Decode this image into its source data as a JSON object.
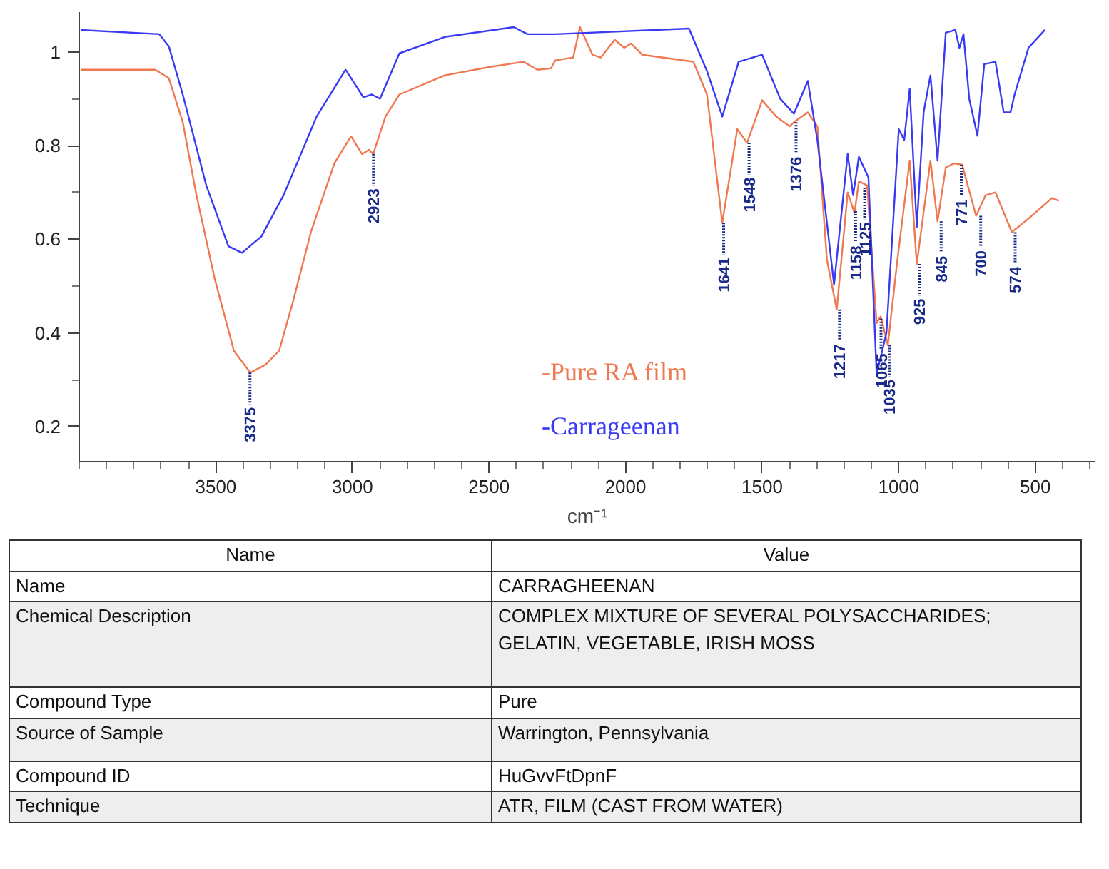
{
  "chart_data": {
    "type": "line",
    "xlabel": "cm⁻¹",
    "xlim": [
      4000,
      280
    ],
    "ylim": [
      0.125,
      1.085
    ],
    "xticks": [
      3500,
      3000,
      2500,
      2000,
      1500,
      1000,
      500
    ],
    "yticks": [
      0.2,
      0.4,
      0.6,
      0.8,
      1
    ],
    "grid": false,
    "legend": "bottom",
    "marker": "none",
    "line_style": "solid",
    "series": [
      {
        "name": "-Pure RA film",
        "color": "#f07850",
        "x": [
          3995,
          3722,
          3672,
          3621,
          3571,
          3505,
          3434,
          3374,
          3318,
          3268,
          3217,
          3152,
          3066,
          3005,
          2965,
          2939,
          2924,
          2879,
          2828,
          2662,
          2495,
          2374,
          2323,
          2273,
          2257,
          2192,
          2167,
          2121,
          2091,
          2040,
          2005,
          1980,
          1939,
          1752,
          1702,
          1646,
          1591,
          1555,
          1500,
          1449,
          1399,
          1384,
          1333,
          1298,
          1263,
          1227,
          1187,
          1162,
          1146,
          1116,
          1081,
          1066,
          1040,
          1005,
          960,
          934,
          884,
          858,
          828,
          798,
          768,
          717,
          682,
          646,
          586,
          525,
          439,
          414
        ],
        "values": [
          0.962,
          0.962,
          0.944,
          0.85,
          0.694,
          0.518,
          0.362,
          0.315,
          0.332,
          0.362,
          0.468,
          0.615,
          0.762,
          0.82,
          0.782,
          0.791,
          0.782,
          0.862,
          0.909,
          0.95,
          0.968,
          0.979,
          0.962,
          0.965,
          0.982,
          0.988,
          1.053,
          0.994,
          0.988,
          1.026,
          1.009,
          1.018,
          0.994,
          0.979,
          0.909,
          0.635,
          0.835,
          0.806,
          0.897,
          0.862,
          0.841,
          0.85,
          0.871,
          0.841,
          0.556,
          0.45,
          0.7,
          0.656,
          0.724,
          0.715,
          0.421,
          0.435,
          0.374,
          0.556,
          0.768,
          0.547,
          0.768,
          0.638,
          0.753,
          0.762,
          0.759,
          0.65,
          0.694,
          0.7,
          0.615,
          0.644,
          0.688,
          0.682
        ]
      },
      {
        "name": "-Carrageenan",
        "color": "#3a3af5",
        "x": [
          3995,
          3707,
          3672,
          3621,
          3535,
          3454,
          3404,
          3333,
          3252,
          3131,
          3025,
          2960,
          2929,
          2899,
          2828,
          2662,
          2409,
          2359,
          2257,
          1768,
          1702,
          1646,
          1586,
          1500,
          1434,
          1384,
          1333,
          1298,
          1237,
          1187,
          1167,
          1146,
          1111,
          1081,
          1045,
          1000,
          980,
          960,
          934,
          909,
          884,
          858,
          828,
          793,
          778,
          763,
          742,
          712,
          687,
          646,
          616,
          591,
          576,
          525,
          465
        ],
        "values": [
          1.047,
          1.038,
          1.012,
          0.909,
          0.715,
          0.585,
          0.571,
          0.606,
          0.694,
          0.862,
          0.962,
          0.903,
          0.909,
          0.9,
          0.997,
          1.032,
          1.053,
          1.038,
          1.038,
          1.05,
          0.959,
          0.862,
          0.979,
          0.994,
          0.9,
          0.868,
          0.938,
          0.812,
          0.503,
          0.782,
          0.694,
          0.776,
          0.732,
          0.312,
          0.4,
          0.835,
          0.812,
          0.921,
          0.626,
          0.871,
          0.95,
          0.768,
          1.041,
          1.047,
          1.009,
          1.038,
          0.9,
          0.821,
          0.974,
          0.979,
          0.871,
          0.871,
          0.909,
          1.009,
          1.047
        ]
      }
    ],
    "annotations": [
      {
        "text": "3375",
        "x": 3375,
        "y": 0.315
      },
      {
        "text": "2923",
        "x": 2923,
        "y": 0.782
      },
      {
        "text": "1641",
        "x": 1641,
        "y": 0.635
      },
      {
        "text": "1548",
        "x": 1548,
        "y": 0.806
      },
      {
        "text": "1376",
        "x": 1376,
        "y": 0.85
      },
      {
        "text": "1217",
        "x": 1217,
        "y": 0.45
      },
      {
        "text": "1158",
        "x": 1158,
        "y": 0.66
      },
      {
        "text": "1125",
        "x": 1125,
        "y": 0.71
      },
      {
        "text": "1065",
        "x": 1065,
        "y": 0.43
      },
      {
        "text": "1035",
        "x": 1035,
        "y": 0.374
      },
      {
        "text": "925",
        "x": 925,
        "y": 0.547
      },
      {
        "text": "845",
        "x": 845,
        "y": 0.638
      },
      {
        "text": "771",
        "x": 771,
        "y": 0.759
      },
      {
        "text": "700",
        "x": 700,
        "y": 0.65
      },
      {
        "text": "574",
        "x": 574,
        "y": 0.615
      },
      "Name",
      "Value",
      "Name",
      "CARRAGHEENAN",
      "Chemical Description",
      "COMPLEX MIXTURE OF SEVERAL POLYSACCHARIDES;\nGELATIN, VEGETABLE, IRISH MOSS",
      "Compound Type",
      "Pure",
      "Source of Sample",
      "Warrington, Pennsylvania",
      "Compound ID",
      "HuGvvFtDpnF",
      "Technique",
      "ATR, FILM (CAST FROM WATER)"
    ]
  }
}
